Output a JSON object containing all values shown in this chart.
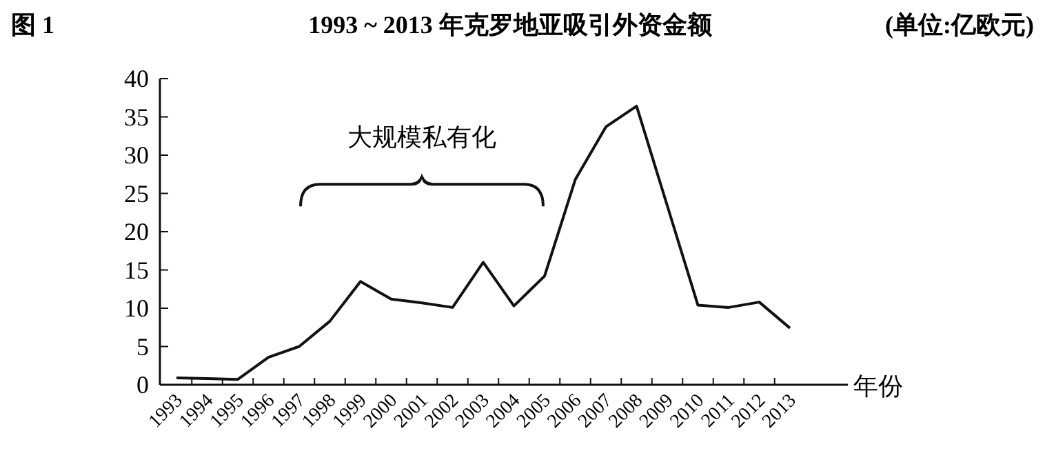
{
  "chart_data": {
    "type": "line",
    "title": "1993 ~ 2013 年克罗地亚吸引外资金额",
    "xlabel": "年份",
    "annotations": [
      "图 1",
      "(单位:亿欧元)",
      "大规模私有化"
    ],
    "categories": [
      "1993",
      "1994",
      "1995",
      "1996",
      "1997",
      "1998",
      "1999",
      "2000",
      "2001",
      "2002",
      "2003",
      "2004",
      "2005",
      "2006",
      "2007",
      "2008",
      "2009",
      "2010",
      "2011",
      "2012",
      "2013"
    ],
    "series": [
      {
        "color": "#111111",
        "values": [
          0.9,
          0.8,
          0.7,
          3.6,
          5.0,
          8.3,
          13.5,
          11.2,
          10.7,
          10.1,
          16.0,
          10.3,
          14.2,
          26.8,
          33.7,
          36.4,
          23.4,
          10.4,
          10.1,
          10.8,
          7.4
        ]
      }
    ],
    "ylim": [
      0,
      40
    ],
    "yticks": [
      0,
      5,
      10,
      15,
      20,
      25,
      30,
      35,
      40
    ],
    "grid": false,
    "marker": "none",
    "line_style": "solid"
  }
}
